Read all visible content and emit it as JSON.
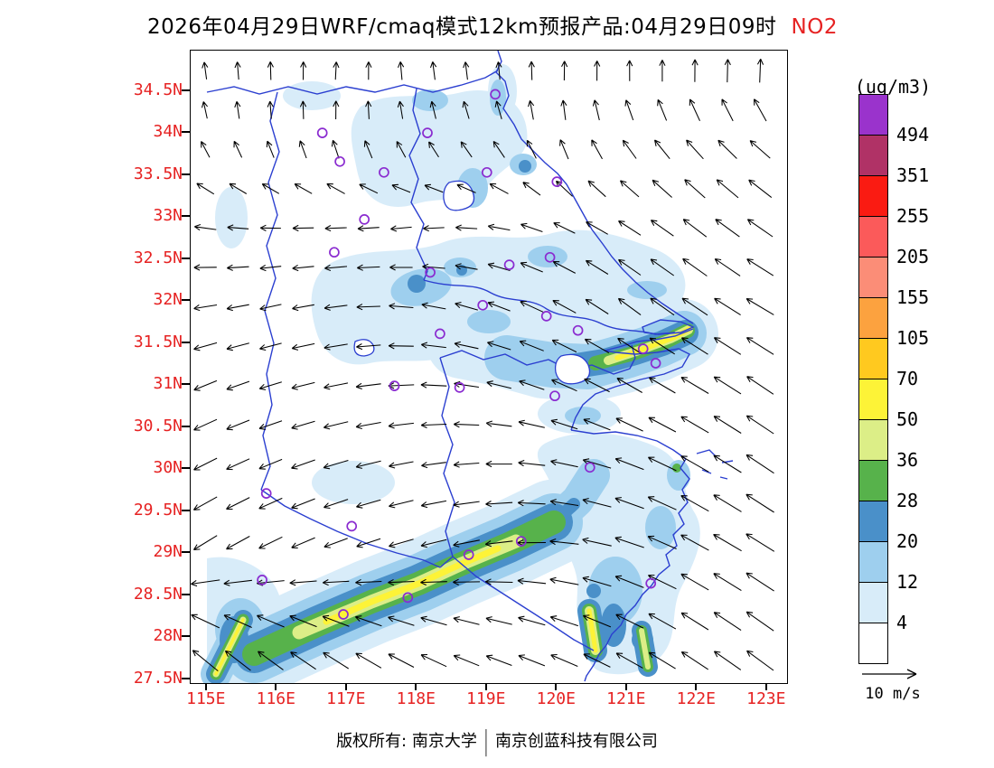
{
  "title": {
    "main": "2026年04月29日WRF/cmaq模式12km预报产品:04月29日09时",
    "pollutant": "NO2"
  },
  "footer": {
    "prefix": "版权所有: 南京大学",
    "separator": "|",
    "company": "南京创蓝科技有限公司"
  },
  "axes": {
    "lat_ticks": [
      "34.5N",
      "34N",
      "33.5N",
      "33N",
      "32.5N",
      "32N",
      "31.5N",
      "31N",
      "30.5N",
      "30N",
      "29.5N",
      "29N",
      "28.5N",
      "28N",
      "27.5N"
    ],
    "lon_ticks": [
      "115E",
      "116E",
      "117E",
      "118E",
      "119E",
      "120E",
      "121E",
      "122E",
      "123E"
    ]
  },
  "legend": {
    "unit_label": "(ug/m3)",
    "values": [
      "494",
      "351",
      "255",
      "205",
      "155",
      "105",
      "70",
      "50",
      "36",
      "28",
      "20",
      "12",
      "4"
    ],
    "colors": [
      "#9a33cc",
      "#b03266",
      "#fa1b12",
      "#fb5a5a",
      "#fb8d77",
      "#fca23f",
      "#ffc91f",
      "#fdf337",
      "#dcee87",
      "#57b24b",
      "#4a90c9",
      "#9ecfee",
      "#d8ecf9",
      "#ffffff"
    ]
  },
  "wind_scale": {
    "label": "10 m/s"
  },
  "colors": {
    "axis_label": "#e62222",
    "title_accent": "#e62222",
    "boundary": "#2b3fd0",
    "marker": "#8a2bd0",
    "arrow": "#000000"
  },
  "chart_data": {
    "type": "heatmap",
    "subtype": "filled-contour-pollution-map-with-wind-vectors",
    "title": "2026年04月29日WRF/cmaq模式12km预报产品:04月29日09时 NO2",
    "pollutant": "NO2",
    "unit": "ug/m3",
    "model": "WRF/cmaq",
    "resolution": "12km",
    "init_date": "2026年04月29日",
    "valid_time": "04月29日09时",
    "lon_range": [
      115,
      123.3
    ],
    "lat_range": [
      27.5,
      35
    ],
    "lon_ticks": [
      "115E",
      "116E",
      "117E",
      "118E",
      "119E",
      "120E",
      "121E",
      "122E",
      "123E"
    ],
    "lat_ticks": [
      "34.5N",
      "34N",
      "33.5N",
      "33N",
      "32.5N",
      "32N",
      "31.5N",
      "31N",
      "30.5N",
      "30N",
      "29.5N",
      "29N",
      "28.5N",
      "28N",
      "27.5N"
    ],
    "levels": [
      4,
      12,
      20,
      28,
      36,
      50,
      70,
      105,
      155,
      205,
      255,
      351,
      494
    ],
    "level_colors_high_to_low": [
      "#9a33cc",
      "#b03266",
      "#fa1b12",
      "#fb5a5a",
      "#fb8d77",
      "#fca23f",
      "#ffc91f",
      "#fdf337",
      "#dcee87",
      "#57b24b",
      "#4a90c9",
      "#9ecfee",
      "#d8ecf9",
      "#ffffff"
    ],
    "wind_reference": "10 m/s",
    "wind_field": {
      "lats": [
        35,
        34,
        33,
        32,
        31,
        30,
        29,
        28,
        27.5
      ],
      "lons": [
        115,
        116,
        117,
        118,
        119,
        120,
        121,
        122,
        123
      ],
      "bearing_deg": [
        [
          95,
          90,
          85,
          95,
          90,
          85,
          80,
          75,
          70
        ],
        [
          105,
          95,
          90,
          105,
          115,
          100,
          120,
          130,
          138
        ],
        [
          170,
          178,
          182,
          188,
          175,
          155,
          148,
          142,
          145
        ],
        [
          188,
          192,
          186,
          172,
          160,
          152,
          143,
          146,
          150
        ],
        [
          202,
          196,
          190,
          180,
          168,
          157,
          150,
          149,
          146
        ],
        [
          207,
          202,
          196,
          190,
          183,
          170,
          160,
          150,
          146
        ],
        [
          212,
          206,
          200,
          196,
          190,
          176,
          162,
          151,
          148
        ],
        [
          142,
          146,
          150,
          156,
          162,
          160,
          152,
          147,
          144
        ],
        [
          140,
          143,
          147,
          152,
          158,
          156,
          150,
          146,
          143
        ]
      ],
      "magnitude": [
        [
          0.6,
          0.65,
          0.6,
          0.65,
          0.6,
          0.65,
          0.7,
          0.75,
          0.8
        ],
        [
          0.6,
          0.6,
          0.65,
          0.6,
          0.65,
          0.7,
          0.75,
          0.85,
          0.9
        ],
        [
          0.75,
          0.7,
          0.75,
          0.7,
          0.75,
          0.8,
          0.9,
          1.0,
          1.05
        ],
        [
          0.8,
          0.75,
          0.8,
          0.85,
          0.8,
          0.9,
          0.95,
          1.05,
          1.1
        ],
        [
          0.85,
          0.8,
          0.85,
          0.9,
          0.85,
          0.95,
          1.0,
          1.1,
          1.1
        ],
        [
          0.9,
          0.85,
          0.9,
          0.85,
          0.9,
          0.95,
          1.05,
          1.1,
          1.15
        ],
        [
          0.95,
          0.9,
          0.85,
          0.9,
          0.95,
          1.0,
          1.05,
          1.1,
          1.15
        ],
        [
          1.1,
          1.05,
          1.0,
          0.95,
          0.9,
          1.0,
          1.05,
          1.1,
          1.15
        ],
        [
          1.15,
          1.1,
          1.05,
          1.0,
          0.95,
          1.0,
          1.05,
          1.1,
          1.15
        ]
      ]
    },
    "stations_lon_lat": [
      [
        116.65,
        34.0
      ],
      [
        118.15,
        34.0
      ],
      [
        119.12,
        34.46
      ],
      [
        116.9,
        33.66
      ],
      [
        117.53,
        33.53
      ],
      [
        119.0,
        33.53
      ],
      [
        120.0,
        33.42
      ],
      [
        117.25,
        32.97
      ],
      [
        116.82,
        32.58
      ],
      [
        119.32,
        32.43
      ],
      [
        119.9,
        32.52
      ],
      [
        118.19,
        32.34
      ],
      [
        118.94,
        31.95
      ],
      [
        119.85,
        31.82
      ],
      [
        120.3,
        31.65
      ],
      [
        118.33,
        31.61
      ],
      [
        121.23,
        31.43
      ],
      [
        121.41,
        31.26
      ],
      [
        117.68,
        30.99
      ],
      [
        118.61,
        30.97
      ],
      [
        119.97,
        30.87
      ],
      [
        120.47,
        30.02
      ],
      [
        115.85,
        29.71
      ],
      [
        117.07,
        29.32
      ],
      [
        118.74,
        28.98
      ],
      [
        119.49,
        29.14
      ],
      [
        115.79,
        28.68
      ],
      [
        117.87,
        28.47
      ],
      [
        116.95,
        28.27
      ],
      [
        121.34,
        28.64
      ]
    ]
  }
}
